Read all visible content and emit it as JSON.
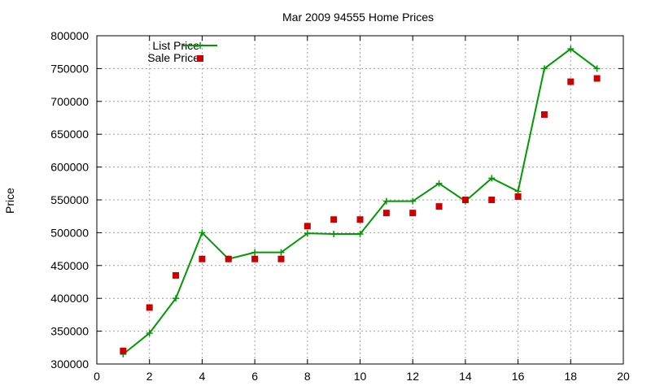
{
  "chart_data": {
    "type": "line",
    "title": "Mar 2009 94555 Home Prices",
    "xlabel": "",
    "ylabel": "Price",
    "xlim": [
      0,
      20
    ],
    "ylim": [
      300000,
      800000
    ],
    "xticks": [
      "0",
      "2",
      "4",
      "6",
      "8",
      "10",
      "12",
      "14",
      "16",
      "18",
      "20"
    ],
    "yticks": [
      "300000",
      "350000",
      "400000",
      "450000",
      "500000",
      "550000",
      "600000",
      "650000",
      "700000",
      "750000",
      "800000"
    ],
    "grid": true,
    "legend_position": "top-left",
    "series": [
      {
        "name": "List Price",
        "style": "line with plus markers",
        "color": "#009900",
        "x": [
          1,
          2,
          3,
          4,
          5,
          6,
          7,
          8,
          9,
          10,
          11,
          12,
          13,
          14,
          15,
          16,
          17,
          18,
          19
        ],
        "y": [
          315000,
          347000,
          400000,
          500000,
          460000,
          470000,
          470000,
          499000,
          498000,
          498000,
          548000,
          548000,
          575000,
          548000,
          583000,
          563000,
          750000,
          780000,
          750000
        ]
      },
      {
        "name": "Sale Price",
        "style": "square markers",
        "color": "#cc0000",
        "x": [
          1,
          2,
          3,
          4,
          5,
          6,
          7,
          8,
          9,
          10,
          11,
          12,
          13,
          14,
          15,
          16,
          17,
          18,
          19
        ],
        "y": [
          320000,
          386000,
          435000,
          460000,
          460000,
          460000,
          460000,
          510000,
          520000,
          520000,
          530000,
          530000,
          540000,
          550000,
          550000,
          555000,
          680000,
          730000,
          735000
        ]
      }
    ]
  }
}
